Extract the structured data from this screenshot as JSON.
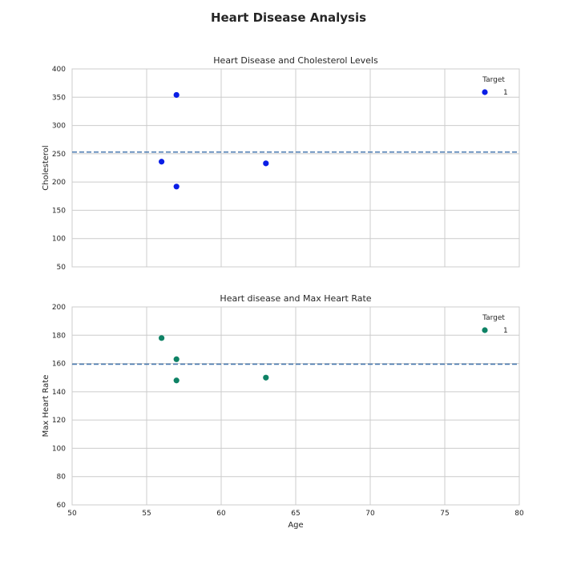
{
  "figure": {
    "title": "Heart Disease Analysis"
  },
  "chart_data": [
    {
      "type": "scatter",
      "title": "Heart Disease and Cholesterol Levels",
      "xlabel": "",
      "ylabel": "Cholesterol",
      "xlim": [
        50,
        80
      ],
      "ylim": [
        50,
        400
      ],
      "xticks": [],
      "yticks": [
        50,
        100,
        150,
        200,
        250,
        300,
        350,
        400
      ],
      "grid": true,
      "reference_line": {
        "orientation": "horizontal",
        "y": 253,
        "style": "dashed",
        "color": "#4a7ab0"
      },
      "legend": {
        "title": "Target",
        "placement": "top-right",
        "entries": [
          "1"
        ]
      },
      "series": [
        {
          "name": "1",
          "color": "#0a1ee6",
          "points": [
            {
              "x": 57,
              "y": 354
            },
            {
              "x": 56,
              "y": 236
            },
            {
              "x": 57,
              "y": 192
            },
            {
              "x": 63,
              "y": 233
            }
          ]
        }
      ]
    },
    {
      "type": "scatter",
      "title": "Heart disease and Max Heart Rate",
      "xlabel": "Age",
      "ylabel": "Max Heart Rate",
      "xlim": [
        50,
        80
      ],
      "ylim": [
        60,
        200
      ],
      "xticks": [
        50,
        55,
        60,
        65,
        70,
        75,
        80
      ],
      "yticks": [
        60,
        80,
        100,
        120,
        140,
        160,
        180,
        200
      ],
      "grid": true,
      "reference_line": {
        "orientation": "horizontal",
        "y": 159.5,
        "style": "dashed",
        "color": "#4a7ab0"
      },
      "legend": {
        "title": "Target",
        "placement": "top-right",
        "entries": [
          "1"
        ]
      },
      "series": [
        {
          "name": "1",
          "color": "#0e8265",
          "points": [
            {
              "x": 56,
              "y": 178
            },
            {
              "x": 57,
              "y": 163
            },
            {
              "x": 57,
              "y": 148
            },
            {
              "x": 63,
              "y": 150
            }
          ]
        }
      ]
    }
  ]
}
